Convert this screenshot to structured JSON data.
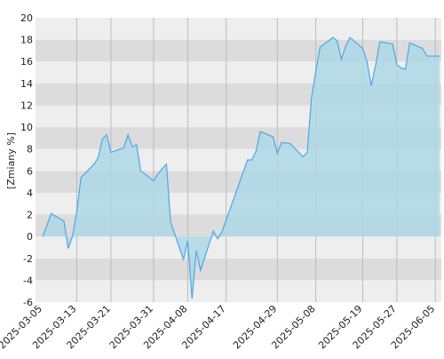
{
  "chart_data": {
    "type": "area",
    "ylabel": "[Zmiany %]",
    "ylim": [
      -6,
      20
    ],
    "y_ticks": [
      -6,
      -4,
      -2,
      0,
      2,
      4,
      6,
      8,
      10,
      12,
      14,
      16,
      18,
      20
    ],
    "y_tick_labels": [
      "-6",
      "-4",
      "-2",
      "0",
      "2",
      "4",
      "6",
      "8",
      "10",
      "12",
      "14",
      "16",
      "18",
      "20"
    ],
    "x_tick_labels": [
      "2025-03-05",
      "2025-03-13",
      "2025-03-21",
      "2025-03-31",
      "2025-04-08",
      "2025-04-17",
      "2025-04-29",
      "2025-05-08",
      "2025-05-19",
      "2025-05-27",
      "2025-06-05"
    ],
    "grid": true,
    "x_dates": [
      "2025-03-05",
      "2025-03-06",
      "2025-03-07",
      "2025-03-10",
      "2025-03-11",
      "2025-03-12",
      "2025-03-13",
      "2025-03-14",
      "2025-03-17",
      "2025-03-18",
      "2025-03-19",
      "2025-03-20",
      "2025-03-21",
      "2025-03-24",
      "2025-03-25",
      "2025-03-26",
      "2025-03-27",
      "2025-03-28",
      "2025-03-31",
      "2025-04-01",
      "2025-04-02",
      "2025-04-03",
      "2025-04-04",
      "2025-04-07",
      "2025-04-08",
      "2025-04-09",
      "2025-04-10",
      "2025-04-11",
      "2025-04-14",
      "2025-04-15",
      "2025-04-16",
      "2025-04-17",
      "2025-04-22",
      "2025-04-23",
      "2025-04-24",
      "2025-04-25",
      "2025-04-28",
      "2025-04-29",
      "2025-04-30",
      "2025-05-02",
      "2025-05-05",
      "2025-05-06",
      "2025-05-07",
      "2025-05-08",
      "2025-05-09",
      "2025-05-12",
      "2025-05-13",
      "2025-05-14",
      "2025-05-15",
      "2025-05-16",
      "2025-05-19",
      "2025-05-20",
      "2025-05-21",
      "2025-05-22",
      "2025-05-23",
      "2025-05-26",
      "2025-05-27",
      "2025-05-28",
      "2025-05-29",
      "2025-05-30",
      "2025-06-02",
      "2025-06-03",
      "2025-06-04",
      "2025-06-05",
      "2025-06-06"
    ],
    "values": [
      0.0,
      1.0,
      2.1,
      1.4,
      -1.1,
      0.0,
      2.3,
      5.4,
      6.6,
      7.2,
      8.9,
      9.3,
      7.7,
      8.1,
      9.3,
      8.2,
      8.4,
      6.0,
      5.1,
      5.7,
      6.2,
      6.6,
      1.3,
      -2.1,
      -0.4,
      -5.7,
      -1.3,
      -3.1,
      0.5,
      -0.2,
      0.4,
      1.5,
      7.0,
      7.0,
      7.8,
      9.6,
      9.1,
      7.6,
      8.6,
      8.5,
      7.3,
      7.7,
      12.7,
      15.1,
      17.3,
      18.2,
      17.9,
      16.2,
      17.4,
      18.2,
      17.2,
      16.0,
      13.8,
      15.6,
      17.8,
      17.6,
      15.7,
      15.4,
      15.3,
      17.7,
      17.2,
      16.5,
      16.5,
      16.5,
      16.5
    ],
    "line_color": "#4da6e8",
    "fill_color": "#add8e6",
    "band_colors": [
      "#eeeeee",
      "#dcdcdc"
    ]
  }
}
